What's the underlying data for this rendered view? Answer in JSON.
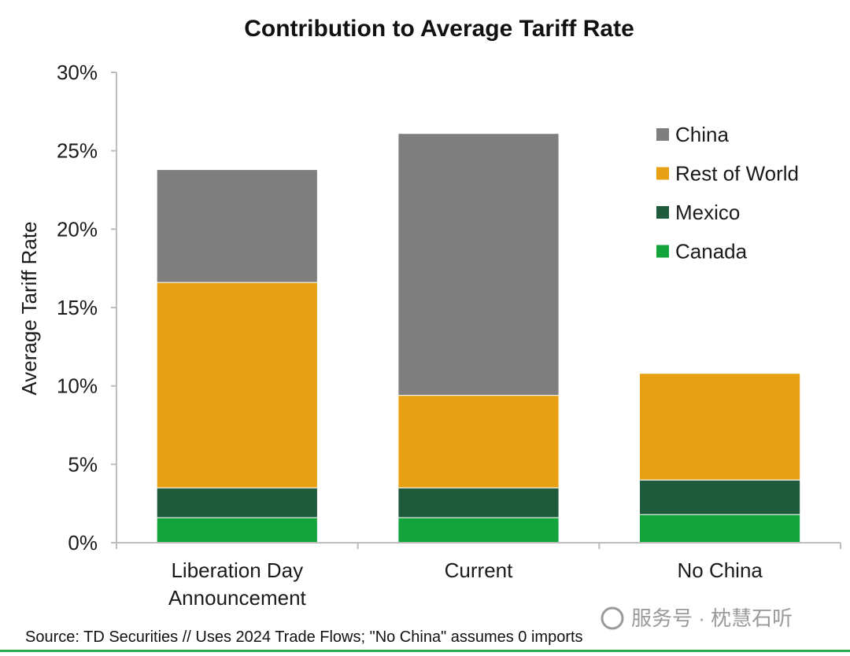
{
  "chart_data": {
    "type": "bar",
    "stacked": true,
    "title": "Contribution to Average Tariff Rate",
    "xlabel": "",
    "ylabel": "Average Tariff Rate",
    "ylim": [
      0,
      30
    ],
    "yticks": [
      "0%",
      "5%",
      "10%",
      "15%",
      "20%",
      "25%",
      "30%"
    ],
    "ytick_values": [
      0,
      5,
      10,
      15,
      20,
      25,
      30
    ],
    "categories": [
      [
        "Liberation Day",
        "Announcement"
      ],
      [
        "Current"
      ],
      [
        "No China"
      ]
    ],
    "series": [
      {
        "name": "Canada",
        "color": "#12a43a",
        "values": [
          1.6,
          1.6,
          1.8
        ]
      },
      {
        "name": "Mexico",
        "color": "#1e5a3c",
        "values": [
          1.9,
          1.9,
          2.2
        ]
      },
      {
        "name": "Rest of World",
        "color": "#e8a013",
        "values": [
          13.1,
          5.9,
          6.8
        ]
      },
      {
        "name": "China",
        "color": "#7f7f7f",
        "values": [
          7.2,
          16.7,
          0
        ]
      }
    ],
    "legend_order": [
      "China",
      "Rest of World",
      "Mexico",
      "Canada"
    ],
    "legend_position": "top-right",
    "grid": false
  },
  "source_note": "Source: TD Securities // Uses 2024 Trade Flows; \"No China\" assumes 0 imports",
  "watermark": "服务号 · 枕慧石听",
  "colors": {
    "axis": "#bdbdbd",
    "bottom_rule": "#2fa84f"
  }
}
